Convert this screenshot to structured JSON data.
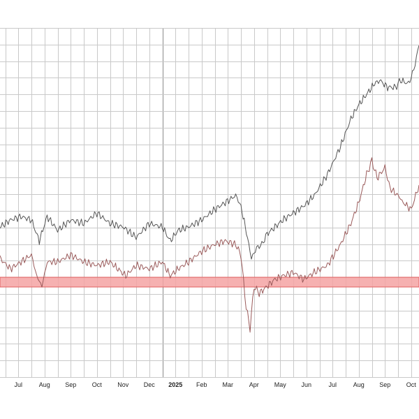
{
  "chart_data": {
    "type": "line",
    "title": "",
    "xlabel": "",
    "ylabel": "",
    "x_tick_labels": [
      "Jul",
      "Aug",
      "Sep",
      "Oct",
      "Nov",
      "Dec",
      "2025",
      "Feb",
      "Mar",
      "Apr",
      "May",
      "Jun",
      "Jul",
      "Aug",
      "Sep",
      "Oct"
    ],
    "x_tick_positions": [
      0.5,
      1.5,
      2.5,
      3.5,
      4.5,
      5.5,
      6.5,
      7.5,
      8.5,
      9.5,
      10.5,
      11.5,
      12.5,
      13.5,
      14.5,
      15.5
    ],
    "year_boundary": 6.0,
    "xlim": [
      -0.2,
      15.8
    ],
    "ylim": [
      0,
      100
    ],
    "grid": true,
    "band": {
      "from": 25.8,
      "to": 28.6,
      "color": "#f5a3a3",
      "edge_color": "#e06060"
    },
    "series": [
      {
        "color": "#555555",
        "x": [
          -0.2,
          0.2,
          0.6,
          1.0,
          1.3,
          1.6,
          2.0,
          2.5,
          3.0,
          3.5,
          4.0,
          4.5,
          5.0,
          5.5,
          6.0,
          6.3,
          6.6,
          7.0,
          7.5,
          8.0,
          8.4,
          8.8,
          9.0,
          9.25,
          9.4,
          9.6,
          9.8,
          10.0,
          10.3,
          10.6,
          11.0,
          11.4,
          11.8,
          12.3,
          12.8,
          13.2,
          13.5,
          13.8,
          14.1,
          14.3,
          14.6,
          14.9,
          15.1,
          15.4,
          15.6,
          15.8
        ],
        "y": [
          43,
          45,
          46,
          45,
          39,
          46,
          42,
          45,
          44,
          47,
          44,
          43,
          40,
          44,
          43,
          39,
          42,
          43,
          45,
          48,
          50,
          52,
          49,
          40,
          34,
          37,
          38,
          41,
          43,
          45,
          47,
          49,
          52,
          58,
          66,
          74,
          78,
          81,
          84,
          85,
          83,
          83,
          85,
          84,
          88,
          95
        ]
      },
      {
        "color": "#9a5a5a",
        "x": [
          -0.2,
          0.2,
          0.6,
          1.0,
          1.2,
          1.4,
          1.6,
          2.0,
          2.5,
          3.0,
          3.5,
          4.0,
          4.3,
          4.6,
          5.0,
          5.5,
          6.0,
          6.3,
          6.6,
          7.0,
          7.5,
          8.0,
          8.4,
          8.8,
          9.0,
          9.2,
          9.35,
          9.5,
          9.7,
          10.0,
          10.3,
          10.6,
          11.0,
          11.4,
          11.8,
          12.3,
          12.8,
          13.2,
          13.5,
          13.8,
          14.0,
          14.2,
          14.5,
          14.7,
          15.0,
          15.2,
          15.5,
          15.8
        ],
        "y": [
          34,
          31,
          33,
          35,
          29,
          26,
          33,
          33,
          35,
          33,
          32,
          33,
          31,
          29,
          32,
          31,
          33,
          29,
          31,
          33,
          36,
          38,
          39,
          38,
          35,
          20,
          14,
          26,
          24,
          26,
          28,
          29,
          30,
          28,
          30,
          32,
          38,
          44,
          50,
          58,
          62,
          57,
          60,
          54,
          52,
          50,
          48,
          55
        ]
      }
    ]
  }
}
